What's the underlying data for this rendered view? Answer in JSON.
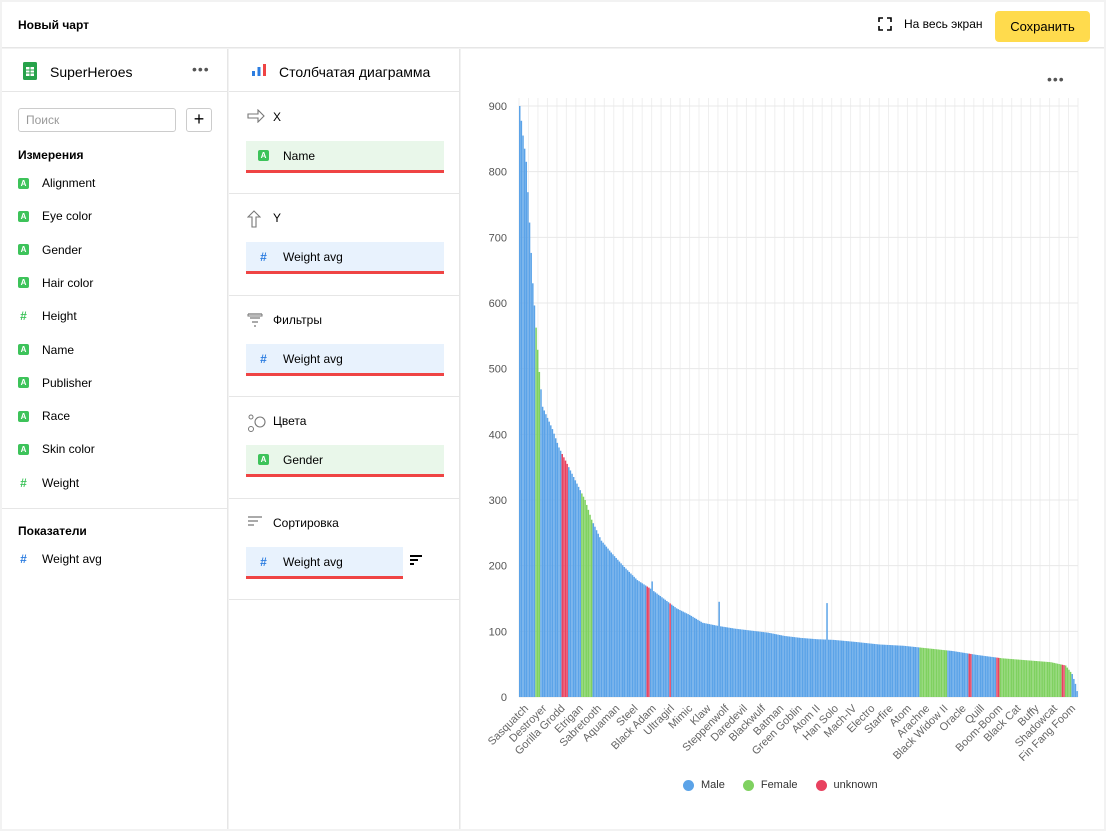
{
  "header": {
    "title": "Новый чарт",
    "fullscreen_label": "На весь экран",
    "save_label": "Сохранить"
  },
  "dataset": {
    "name": "SuperHeroes",
    "search_placeholder": "Поиск",
    "dimensions_title": "Измерения",
    "dimensions": [
      {
        "type": "A",
        "label": "Alignment"
      },
      {
        "type": "A",
        "label": "Eye color"
      },
      {
        "type": "A",
        "label": "Gender"
      },
      {
        "type": "A",
        "label": "Hair color"
      },
      {
        "type": "#",
        "label": "Height"
      },
      {
        "type": "A",
        "label": "Name"
      },
      {
        "type": "A",
        "label": "Publisher"
      },
      {
        "type": "A",
        "label": "Race"
      },
      {
        "type": "A",
        "label": "Skin color"
      },
      {
        "type": "#",
        "label": "Weight"
      }
    ],
    "measures_title": "Показатели",
    "measures": [
      {
        "type": "#",
        "label": "Weight avg"
      }
    ]
  },
  "wizard": {
    "viz_name": "Столбчатая диаграмма",
    "sections": [
      {
        "title": "X",
        "icon": "arrow-right-icon",
        "field": {
          "type": "A",
          "label": "Name"
        }
      },
      {
        "title": "Y",
        "icon": "arrow-up-icon",
        "field": {
          "type": "#",
          "label": "Weight avg"
        }
      },
      {
        "title": "Фильтры",
        "icon": "filter-icon",
        "field": {
          "type": "#",
          "label": "Weight avg"
        }
      },
      {
        "title": "Цвета",
        "icon": "colors-icon",
        "field": {
          "type": "A",
          "label": "Gender"
        }
      },
      {
        "title": "Сортировка",
        "icon": "sort-icon",
        "field": {
          "type": "#",
          "label": "Weight avg"
        }
      }
    ]
  },
  "colors": {
    "male": "#5ba3e8",
    "female": "#7fd160",
    "unknown": "#e8415f",
    "accent": "#ffdb4d",
    "underline": "#ef4444"
  },
  "chart_data": {
    "type": "bar",
    "title": "",
    "xlabel": "",
    "ylabel": "",
    "ylim": [
      0,
      900
    ],
    "yticks": [
      0,
      100,
      200,
      300,
      400,
      500,
      600,
      700,
      800,
      900
    ],
    "x_tick_labels": [
      "Sasquatch",
      "Destroyer",
      "Gorilla Grodd",
      "Etrigan",
      "Sabretooth",
      "Aquaman",
      "Steel",
      "Black Adam",
      "Ultragirl",
      "Mimic",
      "Klaw",
      "Steppenwolf",
      "Daredevil",
      "Blackwulf",
      "Batman",
      "Green Goblin",
      "Atom II",
      "Han Solo",
      "Mach-IV",
      "Electro",
      "Starfire",
      "Atom",
      "Arachne",
      "Black Widow II",
      "Oracle",
      "Quill",
      "Boom-Boom",
      "Black Cat",
      "Buffy",
      "Shadowcat",
      "Fin Fang Foom"
    ],
    "grid": true,
    "legend": {
      "position": "bottom",
      "entries": [
        {
          "name": "Male",
          "color": "#5ba3e8"
        },
        {
          "name": "Female",
          "color": "#7fd160"
        },
        {
          "name": "unknown",
          "color": "#e8415f"
        }
      ]
    },
    "bar_count": 342,
    "profile": [
      [
        0,
        900
      ],
      [
        2,
        855
      ],
      [
        4,
        815
      ],
      [
        8,
        630
      ],
      [
        12,
        495
      ],
      [
        14,
        442
      ],
      [
        20,
        408
      ],
      [
        24,
        380
      ],
      [
        28,
        360
      ],
      [
        34,
        330
      ],
      [
        40,
        300
      ],
      [
        44,
        270
      ],
      [
        50,
        238
      ],
      [
        56,
        220
      ],
      [
        64,
        198
      ],
      [
        72,
        178
      ],
      [
        80,
        165
      ],
      [
        88,
        150
      ],
      [
        96,
        135
      ],
      [
        104,
        125
      ],
      [
        112,
        113
      ],
      [
        122,
        108
      ],
      [
        132,
        104
      ],
      [
        142,
        101
      ],
      [
        152,
        98
      ],
      [
        162,
        93
      ],
      [
        172,
        90
      ],
      [
        182,
        88
      ],
      [
        192,
        87
      ],
      [
        205,
        84
      ],
      [
        220,
        80
      ],
      [
        235,
        78
      ],
      [
        250,
        74
      ],
      [
        265,
        70
      ],
      [
        280,
        64
      ],
      [
        295,
        59
      ],
      [
        310,
        56
      ],
      [
        325,
        53
      ],
      [
        334,
        48
      ],
      [
        338,
        35
      ],
      [
        340,
        20
      ],
      [
        341,
        9
      ]
    ],
    "spikes": [
      [
        81,
        176
      ],
      [
        122,
        145
      ],
      [
        188,
        143
      ]
    ],
    "gender_segments": [
      [
        0,
        "Male"
      ],
      [
        10,
        "Female"
      ],
      [
        13,
        "Male"
      ],
      [
        26,
        "unknown"
      ],
      [
        30,
        "Male"
      ],
      [
        38,
        "Female"
      ],
      [
        45,
        "Male"
      ],
      [
        78,
        "unknown"
      ],
      [
        80,
        "Male"
      ],
      [
        92,
        "unknown"
      ],
      [
        93,
        "Male"
      ],
      [
        245,
        "Female"
      ],
      [
        262,
        "Male"
      ],
      [
        275,
        "unknown"
      ],
      [
        277,
        "Male"
      ],
      [
        292,
        "unknown"
      ],
      [
        294,
        "Female"
      ],
      [
        332,
        "unknown"
      ],
      [
        334,
        "Female"
      ],
      [
        338,
        "Male"
      ]
    ]
  }
}
